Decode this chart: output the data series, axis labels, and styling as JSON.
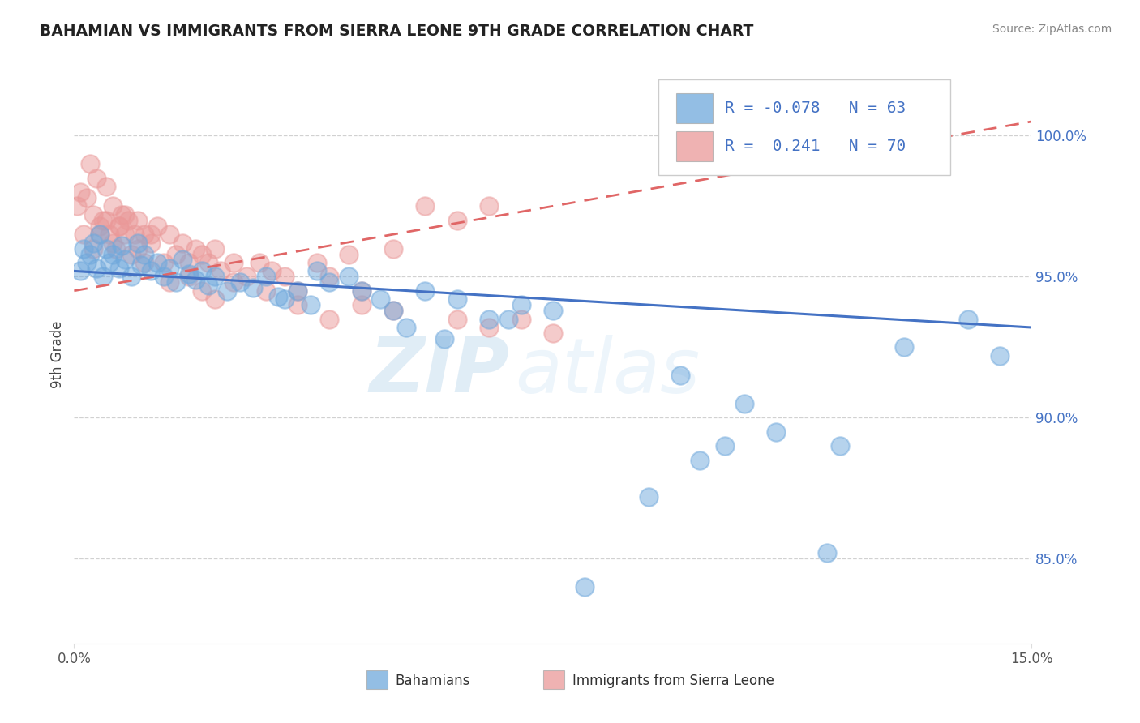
{
  "title": "BAHAMIAN VS IMMIGRANTS FROM SIERRA LEONE 9TH GRADE CORRELATION CHART",
  "source": "Source: ZipAtlas.com",
  "ylabel": "9th Grade",
  "xlim": [
    0.0,
    15.0
  ],
  "ylim": [
    82.0,
    102.5
  ],
  "y_ticks": [
    85.0,
    90.0,
    95.0,
    100.0
  ],
  "y_tick_labels": [
    "85.0%",
    "90.0%",
    "95.0%",
    "100.0%"
  ],
  "legend_blue_r": "-0.078",
  "legend_blue_n": "63",
  "legend_pink_r": "0.241",
  "legend_pink_n": "70",
  "blue_color": "#6fa8dc",
  "pink_color": "#ea9999",
  "trend_blue_color": "#4472c4",
  "trend_pink_color": "#e06666",
  "blue_scatter_x": [
    0.1,
    0.15,
    0.2,
    0.25,
    0.3,
    0.35,
    0.4,
    0.45,
    0.5,
    0.55,
    0.6,
    0.7,
    0.75,
    0.8,
    0.9,
    1.0,
    1.05,
    1.1,
    1.2,
    1.3,
    1.4,
    1.5,
    1.6,
    1.7,
    1.8,
    1.9,
    2.0,
    2.1,
    2.2,
    2.4,
    2.6,
    2.8,
    3.0,
    3.2,
    3.5,
    3.8,
    4.0,
    4.3,
    4.8,
    5.0,
    5.5,
    6.0,
    6.5,
    7.0,
    7.5,
    8.0,
    9.5,
    10.5,
    11.0,
    12.0,
    13.0,
    14.0,
    14.5,
    3.3,
    3.7,
    4.5,
    5.2,
    5.8,
    6.8,
    9.0,
    9.8,
    10.2,
    11.8
  ],
  "blue_scatter_y": [
    95.2,
    96.0,
    95.5,
    95.8,
    96.2,
    95.3,
    96.5,
    95.0,
    96.0,
    95.5,
    95.8,
    95.3,
    96.1,
    95.6,
    95.0,
    96.2,
    95.4,
    95.8,
    95.2,
    95.5,
    95.0,
    95.3,
    94.8,
    95.6,
    95.1,
    94.9,
    95.2,
    94.7,
    95.0,
    94.5,
    94.8,
    94.6,
    95.0,
    94.3,
    94.5,
    95.2,
    94.8,
    95.0,
    94.2,
    93.8,
    94.5,
    94.2,
    93.5,
    94.0,
    93.8,
    84.0,
    91.5,
    90.5,
    89.5,
    89.0,
    92.5,
    93.5,
    92.2,
    94.2,
    94.0,
    94.5,
    93.2,
    92.8,
    93.5,
    87.2,
    88.5,
    89.0,
    85.2
  ],
  "pink_scatter_x": [
    0.05,
    0.1,
    0.15,
    0.2,
    0.25,
    0.3,
    0.35,
    0.4,
    0.45,
    0.5,
    0.55,
    0.6,
    0.65,
    0.7,
    0.75,
    0.8,
    0.85,
    0.9,
    0.95,
    1.0,
    1.1,
    1.2,
    1.3,
    1.4,
    1.5,
    1.6,
    1.7,
    1.8,
    1.9,
    2.0,
    2.1,
    2.2,
    2.3,
    2.5,
    2.7,
    2.9,
    3.1,
    3.3,
    3.5,
    3.8,
    4.0,
    4.3,
    4.5,
    5.0,
    5.5,
    6.0,
    6.5,
    0.3,
    0.4,
    0.5,
    0.6,
    0.7,
    0.8,
    1.0,
    1.1,
    1.2,
    1.5,
    1.8,
    2.0,
    2.2,
    2.5,
    3.0,
    3.5,
    4.0,
    4.5,
    5.0,
    6.0,
    6.5,
    7.0,
    7.5
  ],
  "pink_scatter_y": [
    97.5,
    98.0,
    96.5,
    97.8,
    99.0,
    97.2,
    98.5,
    96.8,
    97.0,
    98.2,
    96.5,
    97.5,
    96.0,
    96.8,
    97.2,
    96.5,
    97.0,
    95.8,
    96.5,
    97.0,
    96.5,
    96.2,
    96.8,
    95.5,
    96.5,
    95.8,
    96.2,
    95.5,
    96.0,
    95.8,
    95.5,
    96.0,
    95.2,
    95.5,
    95.0,
    95.5,
    95.2,
    95.0,
    94.5,
    95.5,
    95.0,
    95.8,
    94.5,
    96.0,
    97.5,
    97.0,
    97.5,
    96.0,
    96.5,
    97.0,
    96.2,
    96.8,
    97.2,
    96.0,
    95.5,
    96.5,
    94.8,
    95.0,
    94.5,
    94.2,
    94.8,
    94.5,
    94.0,
    93.5,
    94.0,
    93.8,
    93.5,
    93.2,
    93.5,
    93.0
  ],
  "watermark_zip": "ZIP",
  "watermark_atlas": "atlas",
  "background_color": "#ffffff",
  "grid_color": "#cccccc",
  "trend_blue_x0": 0.0,
  "trend_blue_y0": 95.2,
  "trend_blue_x1": 15.0,
  "trend_blue_y1": 93.2,
  "trend_pink_x0": 0.0,
  "trend_pink_y0": 94.5,
  "trend_pink_x1": 15.0,
  "trend_pink_y1": 100.5
}
